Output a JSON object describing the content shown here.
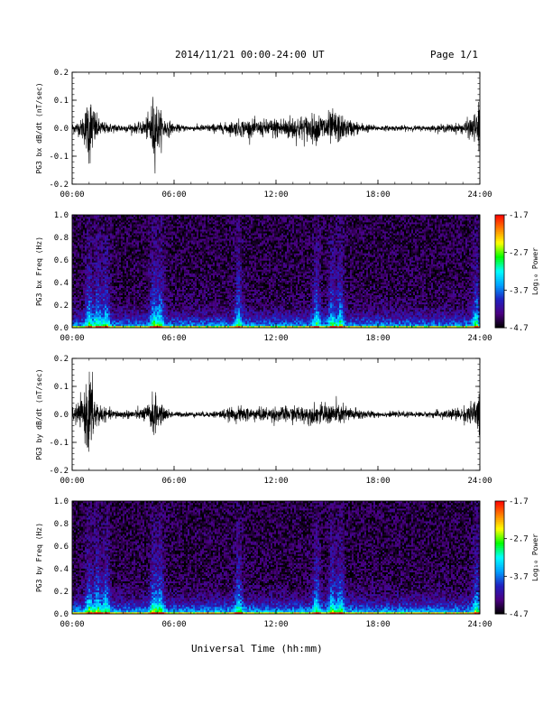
{
  "header": {
    "title": "2014/11/21  00:00-24:00 UT",
    "page": "Page 1/1"
  },
  "colors": {
    "trace": "#000000",
    "colormap": [
      "#000000",
      "#4b0082",
      "#2020c0",
      "#00a0ff",
      "#00ffff",
      "#00ff00",
      "#ffff00",
      "#ff8000",
      "#ff0000"
    ]
  },
  "chart_data": [
    {
      "type": "line",
      "title": "",
      "ylabel": "PG3 bx dB/dt (nT/sec)",
      "xlabel": "",
      "xlim": [
        0,
        24
      ],
      "ylim": [
        -0.2,
        0.2
      ],
      "xticks": [
        "00:00",
        "06:00",
        "12:00",
        "18:00",
        "24:00"
      ],
      "yticks": [
        "-0.2",
        "-0.1",
        "0.0",
        "0.1",
        "0.2"
      ],
      "series": [
        {
          "x_hours": [
            0,
            0.5,
            0.8,
            1.0,
            1.2,
            1.5,
            2.0,
            3.0,
            4.0,
            4.5,
            4.8,
            5.0,
            5.3,
            6.0,
            7.0,
            8.0,
            9.0,
            10.0,
            11.0,
            12.0,
            13.0,
            14.0,
            15.0,
            15.5,
            16.0,
            17.0,
            18.0,
            19.0,
            20.0,
            21.0,
            22.0,
            23.0,
            23.8,
            24.0
          ],
          "amplitude_nT_per_s": [
            0.02,
            0.03,
            0.08,
            0.15,
            0.1,
            0.04,
            0.02,
            0.015,
            0.02,
            0.05,
            0.14,
            0.1,
            0.05,
            0.015,
            0.01,
            0.015,
            0.02,
            0.035,
            0.03,
            0.04,
            0.05,
            0.05,
            0.06,
            0.07,
            0.04,
            0.02,
            0.01,
            0.01,
            0.01,
            0.01,
            0.015,
            0.02,
            0.06,
            0.12
          ]
        }
      ]
    },
    {
      "type": "heatmap",
      "title": "",
      "ylabel": "PG3 bx Freq (Hz)",
      "xlabel": "",
      "xlim": [
        0,
        24
      ],
      "ylim": [
        0,
        1.0
      ],
      "xticks": [
        "00:00",
        "06:00",
        "12:00",
        "18:00",
        "24:00"
      ],
      "yticks": [
        "0.0",
        "0.2",
        "0.4",
        "0.6",
        "0.8",
        "1.0"
      ],
      "colorbar": {
        "label": "Log₁₀ Power",
        "ticks": [
          "-1.7",
          "-2.7",
          "-3.7",
          "-4.7"
        ],
        "range": [
          -4.7,
          -1.7
        ]
      },
      "bursts_hours": [
        1.0,
        1.5,
        2.0,
        4.8,
        5.2,
        9.8,
        14.4,
        15.3,
        15.8,
        23.8
      ],
      "baseline_log10_power_low_freq": -3.3,
      "baseline_log10_power_high_freq": -4.5
    },
    {
      "type": "line",
      "title": "",
      "ylabel": "PG3 by dB/dt (nT/sec)",
      "xlabel": "",
      "xlim": [
        0,
        24
      ],
      "ylim": [
        -0.2,
        0.2
      ],
      "xticks": [
        "00:00",
        "06:00",
        "12:00",
        "18:00",
        "24:00"
      ],
      "yticks": [
        "-0.2",
        "-0.1",
        "0.0",
        "0.1",
        "0.2"
      ],
      "series": [
        {
          "x_hours": [
            0,
            0.5,
            0.8,
            1.0,
            1.2,
            1.5,
            2.0,
            3.0,
            4.0,
            4.5,
            4.8,
            5.0,
            5.3,
            6.0,
            7.0,
            8.0,
            9.0,
            10.0,
            11.0,
            12.0,
            13.0,
            14.0,
            15.0,
            15.5,
            16.0,
            17.0,
            18.0,
            19.0,
            20.0,
            21.0,
            22.0,
            23.0,
            23.8,
            24.0
          ],
          "amplitude_nT_per_s": [
            0.03,
            0.05,
            0.1,
            0.19,
            0.12,
            0.05,
            0.02,
            0.015,
            0.02,
            0.04,
            0.09,
            0.06,
            0.03,
            0.01,
            0.01,
            0.01,
            0.02,
            0.03,
            0.025,
            0.03,
            0.03,
            0.035,
            0.04,
            0.045,
            0.035,
            0.02,
            0.01,
            0.01,
            0.01,
            0.01,
            0.02,
            0.025,
            0.06,
            0.1
          ]
        }
      ]
    },
    {
      "type": "heatmap",
      "title": "",
      "ylabel": "PG3 by Freq (Hz)",
      "xlabel": "Universal Time (hh:mm)",
      "xlim": [
        0,
        24
      ],
      "ylim": [
        0,
        1.0
      ],
      "xticks": [
        "00:00",
        "06:00",
        "12:00",
        "18:00",
        "24:00"
      ],
      "yticks": [
        "0.0",
        "0.2",
        "0.4",
        "0.6",
        "0.8",
        "1.0"
      ],
      "colorbar": {
        "label": "Log₁₀ Power",
        "ticks": [
          "-1.7",
          "-2.7",
          "-3.7",
          "-4.7"
        ],
        "range": [
          -4.7,
          -1.7
        ]
      },
      "bursts_hours": [
        1.0,
        1.5,
        2.0,
        4.8,
        5.2,
        9.8,
        14.4,
        15.3,
        15.8,
        23.8
      ],
      "baseline_log10_power_low_freq": -3.2,
      "baseline_log10_power_high_freq": -4.5
    }
  ]
}
